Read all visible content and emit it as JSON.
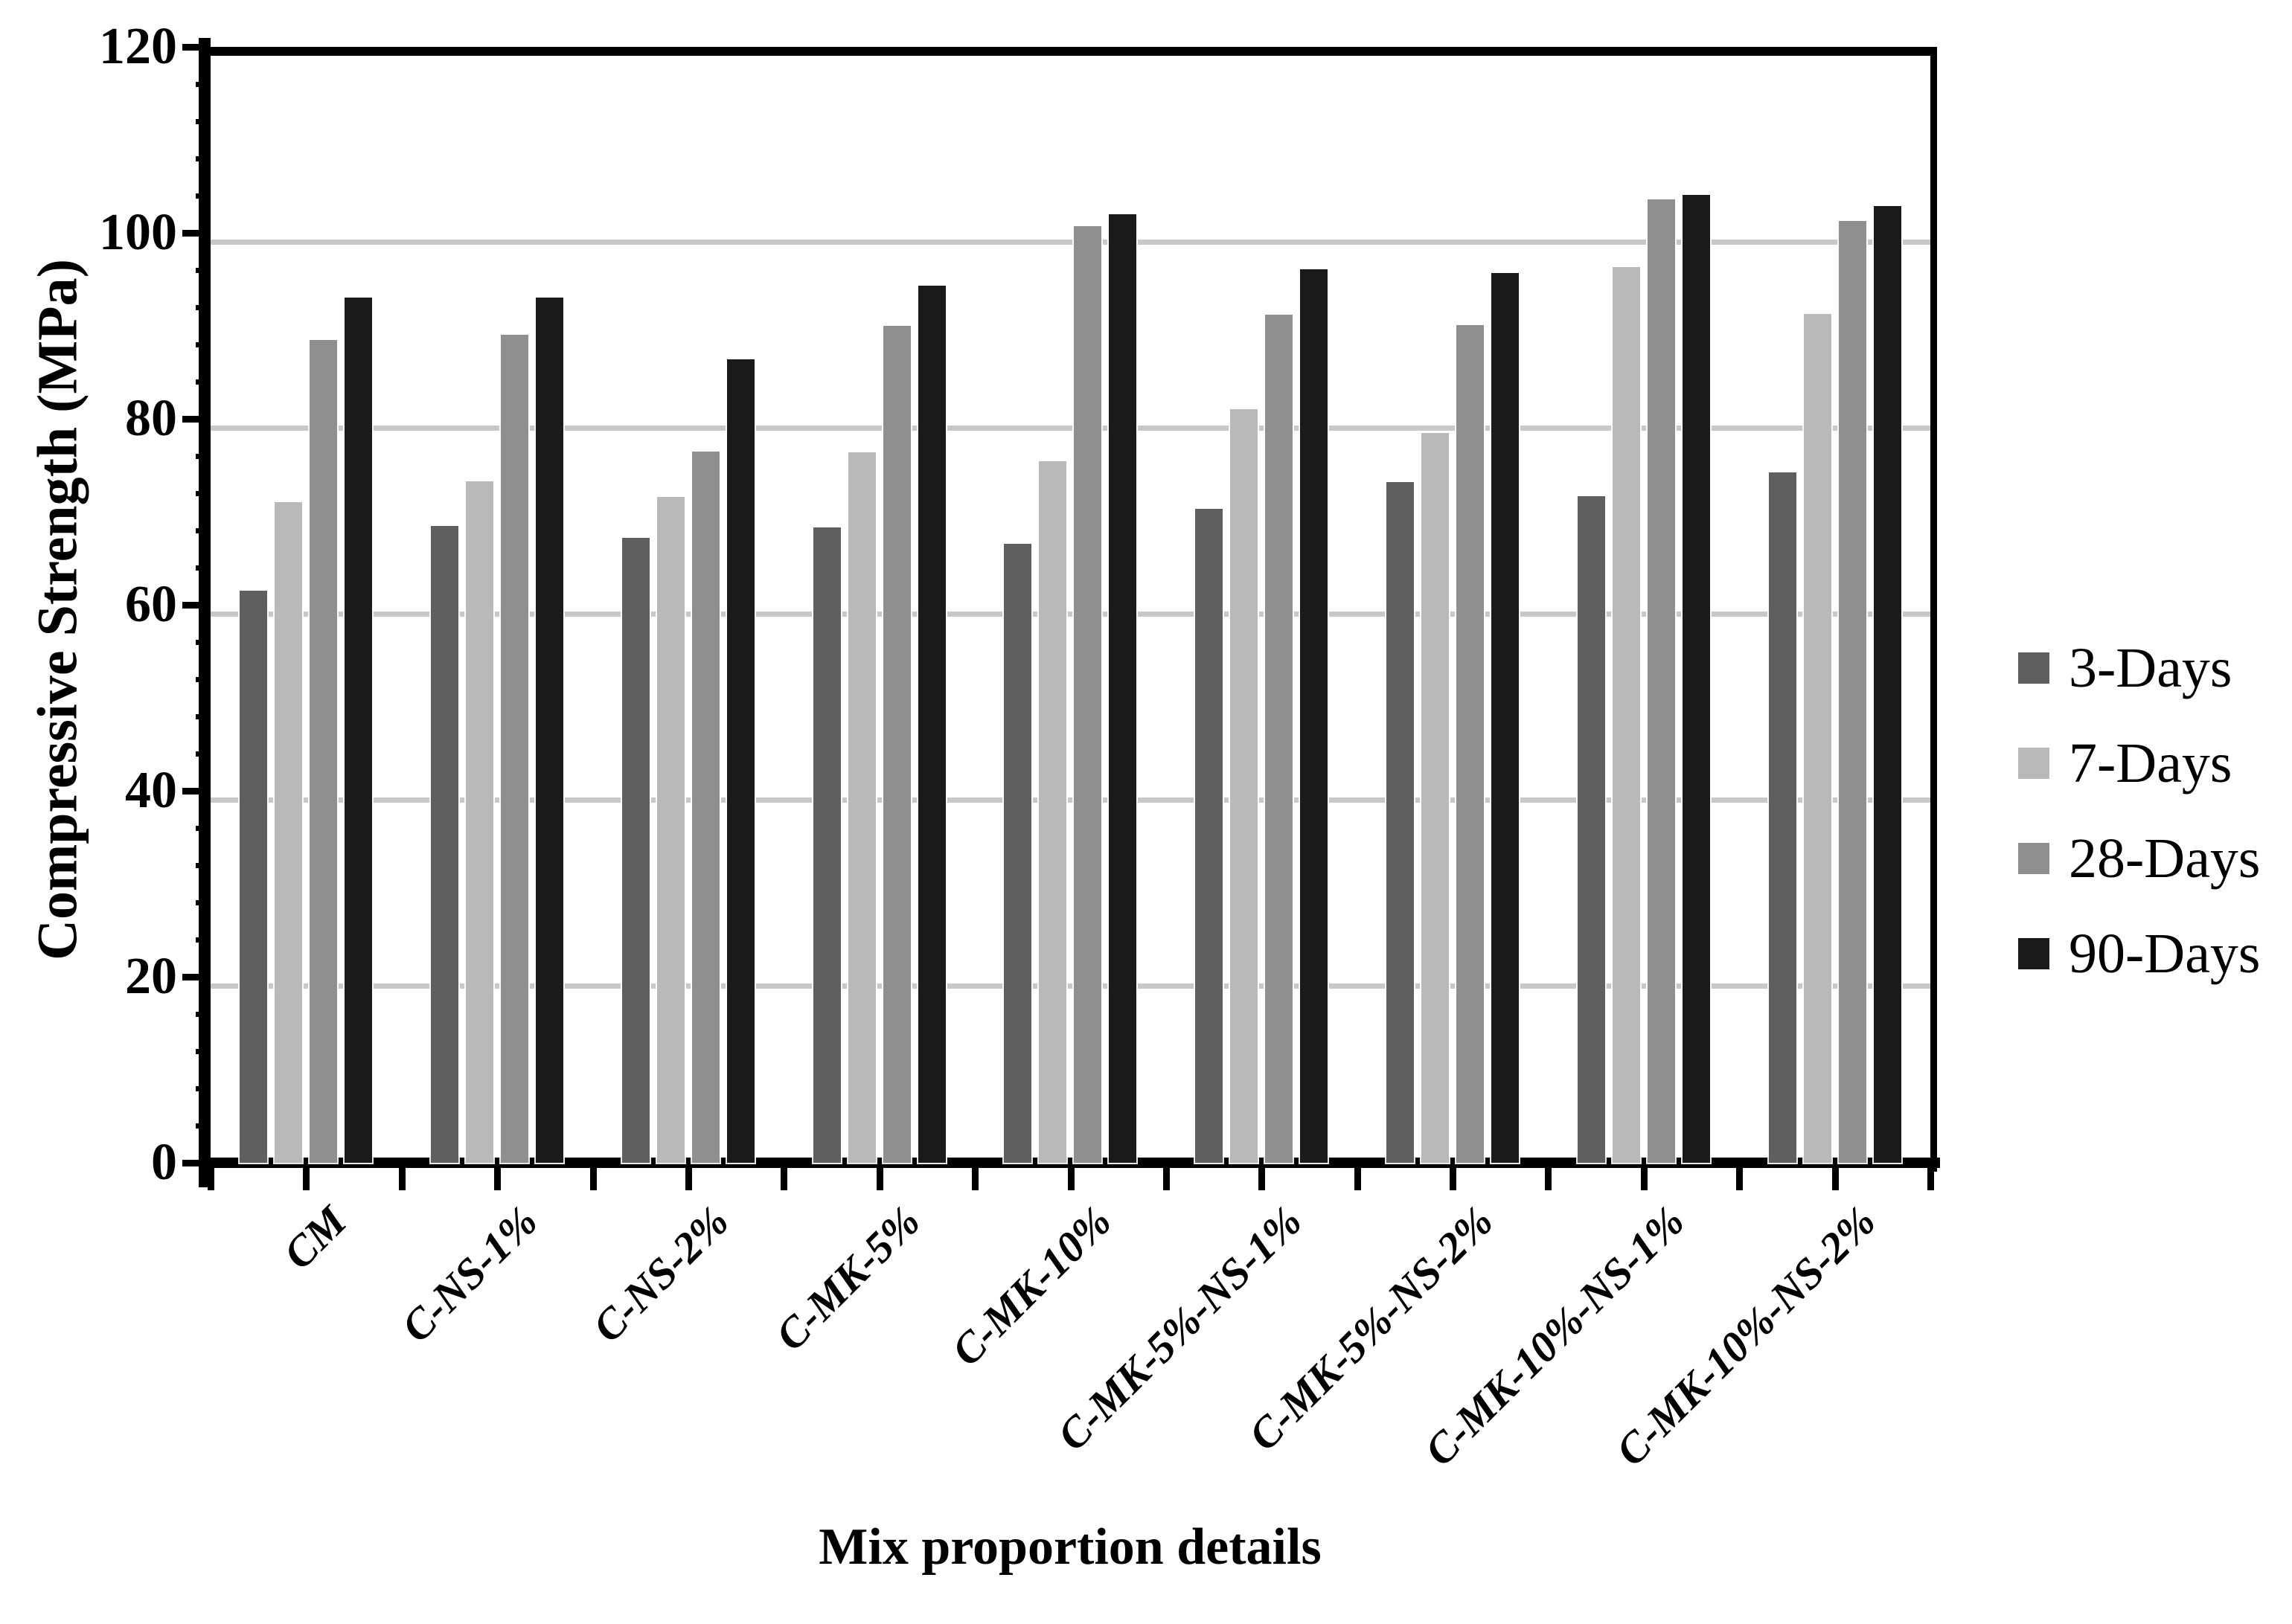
{
  "chart_data": {
    "type": "bar",
    "title": "",
    "xlabel": "Mix proportion details",
    "ylabel": "Compressive Strength (MPa)",
    "ylim": [
      0,
      120
    ],
    "y_major_interval": 20,
    "y_minor_interval": 4,
    "yticks": [
      0,
      20,
      40,
      60,
      80,
      100,
      120
    ],
    "gridlines": [
      20,
      40,
      60,
      80,
      100
    ],
    "grid": "horizontal-major-on",
    "legend_position": "right",
    "x_ticks_per_category": 2,
    "categories": [
      "CM",
      "C-NS-1%",
      "C-NS-2%",
      "C-MK-5%",
      "C-MK-10%",
      "C-MK-5%-NS-1%",
      "C-MK-5%-NS-2%",
      "C-MK-10%-NS-1%",
      "C-MK-10%-NS-2%"
    ],
    "series": [
      {
        "name": "3-Days",
        "color": "#5f5f5f",
        "values": [
          61.5,
          68.5,
          67.2,
          68.3,
          66.6,
          70.3,
          73.2,
          71.7,
          74.2
        ]
      },
      {
        "name": "7-Days",
        "color": "#b9b9b9",
        "values": [
          71.0,
          73.3,
          71.6,
          76.4,
          75.4,
          81.0,
          78.5,
          96.3,
          91.3
        ]
      },
      {
        "name": "28-Days",
        "color": "#8f8f8f",
        "values": [
          88.5,
          89.0,
          76.5,
          90.0,
          100.7,
          91.2,
          90.1,
          103.6,
          101.3
        ]
      },
      {
        "name": "90-Days",
        "color": "#1a1a1a",
        "values": [
          93.0,
          93.0,
          86.4,
          94.3,
          102.0,
          96.1,
          95.7,
          104.1,
          102.9
        ]
      }
    ],
    "colors": {
      "gridline": "#c8c8c8",
      "axis": "#000000",
      "background": "#ffffff"
    }
  }
}
